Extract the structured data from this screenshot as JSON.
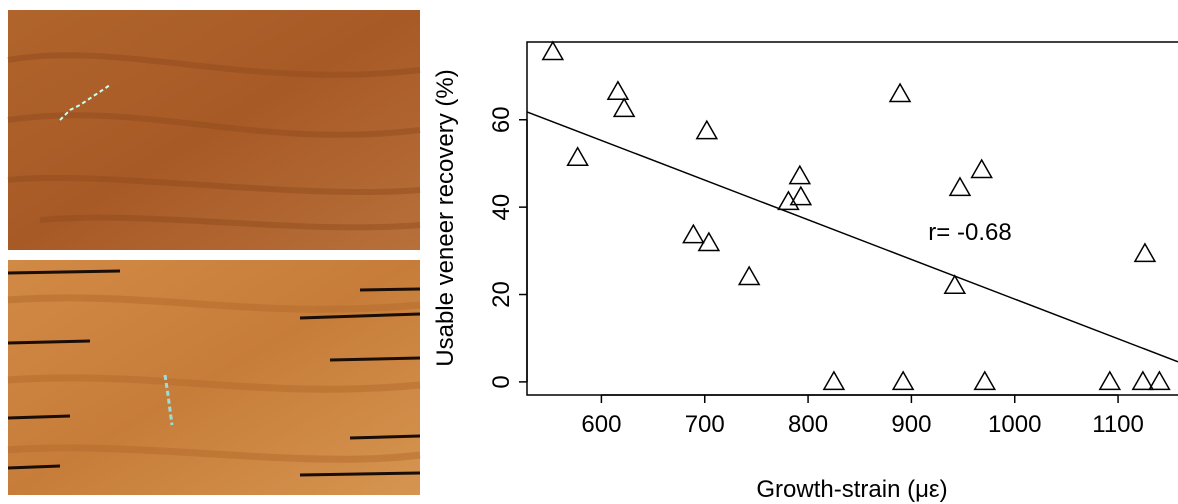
{
  "chart_data": {
    "type": "scatter",
    "x_label": "Growth-strain (με)",
    "y_label": "Usable veneer recovery (%)",
    "annotation": "r= -0.68",
    "x": [
      553,
      577,
      616,
      622,
      702,
      689,
      704,
      743,
      781,
      792,
      793,
      825,
      889,
      892,
      947,
      968,
      942,
      971,
      1092,
      1126,
      1124,
      1140
    ],
    "values": [
      75.5,
      51.3,
      66.4,
      62.5,
      57.4,
      33.6,
      31.8,
      24.0,
      41.2,
      47.1,
      42.3,
      0,
      65.9,
      0,
      44.4,
      48.5,
      22,
      0,
      0,
      29.3,
      0,
      0
    ],
    "fit": {
      "x": [
        528,
        1158
      ],
      "values": [
        61.8,
        4.6
      ]
    },
    "xlim": [
      528,
      1158
    ],
    "ylim": [
      -3,
      77.8
    ],
    "xticks": [
      600,
      700,
      800,
      900,
      1000,
      1100
    ],
    "yticks": [
      0,
      20,
      40,
      60
    ]
  }
}
